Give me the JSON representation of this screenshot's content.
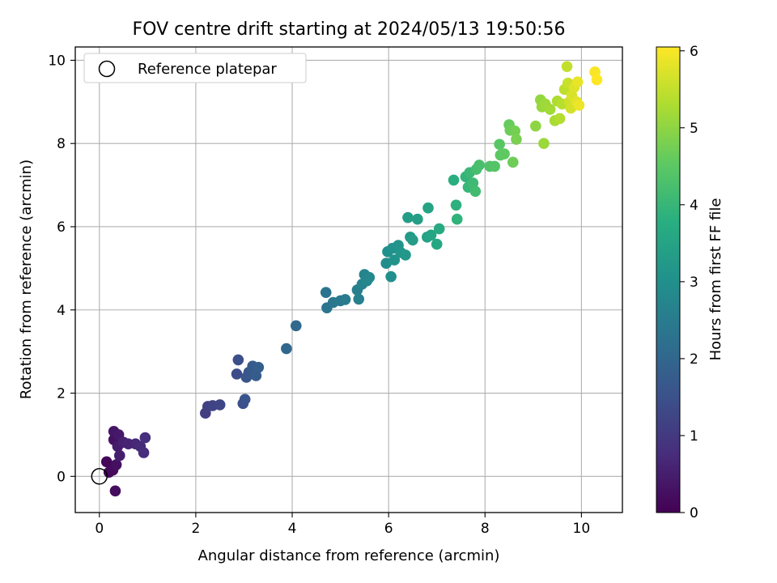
{
  "chart_data": {
    "type": "scatter",
    "title": "FOV centre drift starting at 2024/05/13 19:50:56",
    "xlabel": "Angular distance from reference (arcmin)",
    "ylabel": "Rotation from reference (arcmin)",
    "xlim": [
      -0.5,
      10.85
    ],
    "ylim": [
      -0.87,
      10.32
    ],
    "xticks": [
      0,
      2,
      4,
      6,
      8,
      10
    ],
    "yticks": [
      0,
      2,
      4,
      6,
      8,
      10
    ],
    "grid": true,
    "legend": {
      "placement": "upper-left",
      "entries": [
        "Reference platepar"
      ]
    },
    "colorbar": {
      "label": "Hours from first FF file",
      "range": [
        0,
        6.05
      ],
      "ticks": [
        0,
        1,
        2,
        3,
        4,
        5,
        6
      ],
      "colormap": "viridis"
    },
    "reference_point": {
      "x": 0,
      "y": 0
    },
    "points": [
      {
        "x": 0.15,
        "y": 0.35,
        "h": 0.05
      },
      {
        "x": 0.2,
        "y": 0.1,
        "h": 0.1
      },
      {
        "x": 0.28,
        "y": 0.15,
        "h": 0.15
      },
      {
        "x": 0.33,
        "y": -0.35,
        "h": 0.2
      },
      {
        "x": 0.35,
        "y": 0.28,
        "h": 0.25
      },
      {
        "x": 0.3,
        "y": 0.88,
        "h": 0.3
      },
      {
        "x": 0.3,
        "y": 1.08,
        "h": 0.35
      },
      {
        "x": 0.4,
        "y": 1.0,
        "h": 0.4
      },
      {
        "x": 0.38,
        "y": 0.72,
        "h": 0.45
      },
      {
        "x": 0.42,
        "y": 0.5,
        "h": 0.5
      },
      {
        "x": 0.5,
        "y": 0.82,
        "h": 0.55
      },
      {
        "x": 0.6,
        "y": 0.78,
        "h": 0.6
      },
      {
        "x": 0.75,
        "y": 0.78,
        "h": 0.65
      },
      {
        "x": 0.85,
        "y": 0.72,
        "h": 0.7
      },
      {
        "x": 0.92,
        "y": 0.57,
        "h": 0.75
      },
      {
        "x": 0.95,
        "y": 0.93,
        "h": 0.8
      },
      {
        "x": 2.2,
        "y": 1.52,
        "h": 1.1
      },
      {
        "x": 2.25,
        "y": 1.68,
        "h": 1.15
      },
      {
        "x": 2.35,
        "y": 1.7,
        "h": 1.2
      },
      {
        "x": 2.5,
        "y": 1.72,
        "h": 1.25
      },
      {
        "x": 2.85,
        "y": 2.46,
        "h": 1.4
      },
      {
        "x": 2.88,
        "y": 2.8,
        "h": 1.45
      },
      {
        "x": 2.98,
        "y": 1.75,
        "h": 1.5
      },
      {
        "x": 3.02,
        "y": 1.85,
        "h": 1.55
      },
      {
        "x": 3.05,
        "y": 2.38,
        "h": 1.6
      },
      {
        "x": 3.1,
        "y": 2.5,
        "h": 1.65
      },
      {
        "x": 3.18,
        "y": 2.65,
        "h": 1.7
      },
      {
        "x": 3.25,
        "y": 2.42,
        "h": 1.75
      },
      {
        "x": 3.3,
        "y": 2.62,
        "h": 1.8
      },
      {
        "x": 3.88,
        "y": 3.07,
        "h": 2.0
      },
      {
        "x": 4.08,
        "y": 3.62,
        "h": 2.05
      },
      {
        "x": 4.7,
        "y": 4.42,
        "h": 2.3
      },
      {
        "x": 4.72,
        "y": 4.05,
        "h": 2.35
      },
      {
        "x": 4.85,
        "y": 4.18,
        "h": 2.4
      },
      {
        "x": 5.0,
        "y": 4.22,
        "h": 2.45
      },
      {
        "x": 5.1,
        "y": 4.25,
        "h": 2.5
      },
      {
        "x": 5.35,
        "y": 4.48,
        "h": 2.55
      },
      {
        "x": 5.38,
        "y": 4.26,
        "h": 2.6
      },
      {
        "x": 5.45,
        "y": 4.62,
        "h": 2.65
      },
      {
        "x": 5.5,
        "y": 4.85,
        "h": 2.7
      },
      {
        "x": 5.55,
        "y": 4.7,
        "h": 2.75
      },
      {
        "x": 5.6,
        "y": 4.78,
        "h": 2.8
      },
      {
        "x": 5.95,
        "y": 5.12,
        "h": 2.95
      },
      {
        "x": 5.98,
        "y": 5.4,
        "h": 3.0
      },
      {
        "x": 6.05,
        "y": 4.8,
        "h": 3.0
      },
      {
        "x": 6.08,
        "y": 5.48,
        "h": 3.05
      },
      {
        "x": 6.12,
        "y": 5.2,
        "h": 3.08
      },
      {
        "x": 6.2,
        "y": 5.55,
        "h": 3.1
      },
      {
        "x": 6.25,
        "y": 5.38,
        "h": 3.15
      },
      {
        "x": 6.35,
        "y": 5.32,
        "h": 3.2
      },
      {
        "x": 6.45,
        "y": 5.75,
        "h": 3.25
      },
      {
        "x": 6.5,
        "y": 5.68,
        "h": 3.3
      },
      {
        "x": 6.4,
        "y": 6.22,
        "h": 3.35
      },
      {
        "x": 6.6,
        "y": 6.18,
        "h": 3.4
      },
      {
        "x": 6.8,
        "y": 5.75,
        "h": 3.45
      },
      {
        "x": 6.82,
        "y": 6.45,
        "h": 3.5
      },
      {
        "x": 6.88,
        "y": 5.8,
        "h": 3.55
      },
      {
        "x": 7.0,
        "y": 5.58,
        "h": 3.6
      },
      {
        "x": 7.05,
        "y": 5.95,
        "h": 3.65
      },
      {
        "x": 7.35,
        "y": 7.12,
        "h": 3.8
      },
      {
        "x": 7.4,
        "y": 6.52,
        "h": 3.85
      },
      {
        "x": 7.42,
        "y": 6.18,
        "h": 3.9
      },
      {
        "x": 7.6,
        "y": 7.2,
        "h": 3.95
      },
      {
        "x": 7.65,
        "y": 6.95,
        "h": 4.0
      },
      {
        "x": 7.68,
        "y": 7.3,
        "h": 4.05
      },
      {
        "x": 7.75,
        "y": 7.05,
        "h": 4.1
      },
      {
        "x": 7.8,
        "y": 6.85,
        "h": 4.15
      },
      {
        "x": 7.82,
        "y": 7.38,
        "h": 4.2
      },
      {
        "x": 7.88,
        "y": 7.48,
        "h": 4.25
      },
      {
        "x": 8.1,
        "y": 7.45,
        "h": 4.35
      },
      {
        "x": 8.2,
        "y": 7.45,
        "h": 4.4
      },
      {
        "x": 8.3,
        "y": 7.98,
        "h": 4.45
      },
      {
        "x": 8.32,
        "y": 7.72,
        "h": 4.5
      },
      {
        "x": 8.4,
        "y": 7.75,
        "h": 4.55
      },
      {
        "x": 8.5,
        "y": 8.45,
        "h": 4.6
      },
      {
        "x": 8.52,
        "y": 8.32,
        "h": 4.65
      },
      {
        "x": 8.58,
        "y": 7.55,
        "h": 4.7
      },
      {
        "x": 8.62,
        "y": 8.3,
        "h": 4.75
      },
      {
        "x": 8.65,
        "y": 8.1,
        "h": 4.8
      },
      {
        "x": 9.05,
        "y": 8.42,
        "h": 5.0
      },
      {
        "x": 9.15,
        "y": 9.05,
        "h": 5.05
      },
      {
        "x": 9.18,
        "y": 8.88,
        "h": 5.1
      },
      {
        "x": 9.22,
        "y": 8.0,
        "h": 5.12
      },
      {
        "x": 9.25,
        "y": 8.95,
        "h": 5.15
      },
      {
        "x": 9.35,
        "y": 8.82,
        "h": 5.2
      },
      {
        "x": 9.45,
        "y": 8.55,
        "h": 5.25
      },
      {
        "x": 9.5,
        "y": 9.02,
        "h": 5.3
      },
      {
        "x": 9.55,
        "y": 8.6,
        "h": 5.35
      },
      {
        "x": 9.6,
        "y": 8.95,
        "h": 5.4
      },
      {
        "x": 9.65,
        "y": 9.3,
        "h": 5.45
      },
      {
        "x": 9.7,
        "y": 9.85,
        "h": 5.5
      },
      {
        "x": 9.72,
        "y": 9.45,
        "h": 5.55
      },
      {
        "x": 9.75,
        "y": 9.0,
        "h": 5.6
      },
      {
        "x": 9.78,
        "y": 8.85,
        "h": 5.65
      },
      {
        "x": 9.8,
        "y": 9.15,
        "h": 5.7
      },
      {
        "x": 9.85,
        "y": 9.35,
        "h": 5.75
      },
      {
        "x": 9.9,
        "y": 9.0,
        "h": 5.8
      },
      {
        "x": 9.92,
        "y": 9.48,
        "h": 5.85
      },
      {
        "x": 9.95,
        "y": 8.92,
        "h": 5.9
      },
      {
        "x": 10.28,
        "y": 9.72,
        "h": 6.0
      },
      {
        "x": 10.32,
        "y": 9.53,
        "h": 6.05
      }
    ]
  }
}
